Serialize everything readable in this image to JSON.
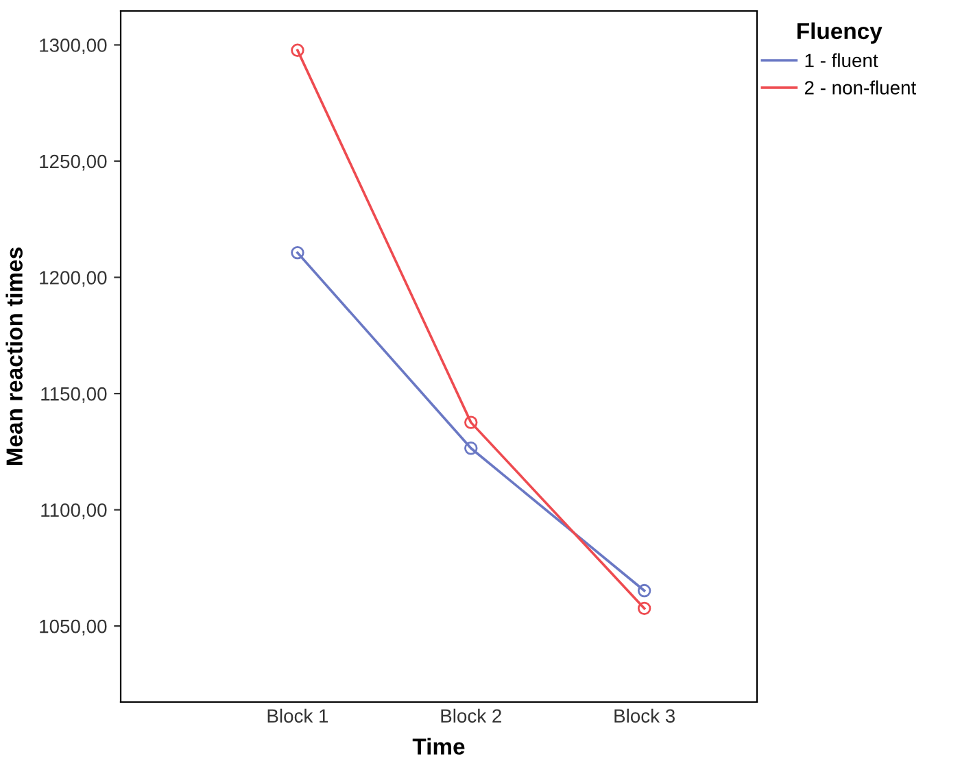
{
  "chart_data": {
    "type": "line",
    "xlabel": "Time",
    "ylabel": "Mean reaction times",
    "legend_title": "Fluency",
    "categories": [
      "Block 1",
      "Block 2",
      "Block 3"
    ],
    "series": [
      {
        "name": "1 - fluent",
        "color": "#6a78c4",
        "values": [
          1210.6,
          1126.5,
          1065.2
        ]
      },
      {
        "name": "2 - non-fluent",
        "color": "#ee4b50",
        "values": [
          1297.7,
          1137.6,
          1057.6
        ]
      }
    ],
    "ylim": [
      1017.3,
      1314.6
    ],
    "yticks": [
      {
        "value": 1050,
        "label": "1050,00"
      },
      {
        "value": 1100,
        "label": "1100,00"
      },
      {
        "value": 1150,
        "label": "1150,00"
      },
      {
        "value": 1200,
        "label": "1200,00"
      },
      {
        "value": 1250,
        "label": "1250,00"
      },
      {
        "value": 1300,
        "label": "1300,00"
      }
    ],
    "grid": false,
    "legend": "top right",
    "marker": "circle",
    "line_style": "solid"
  }
}
